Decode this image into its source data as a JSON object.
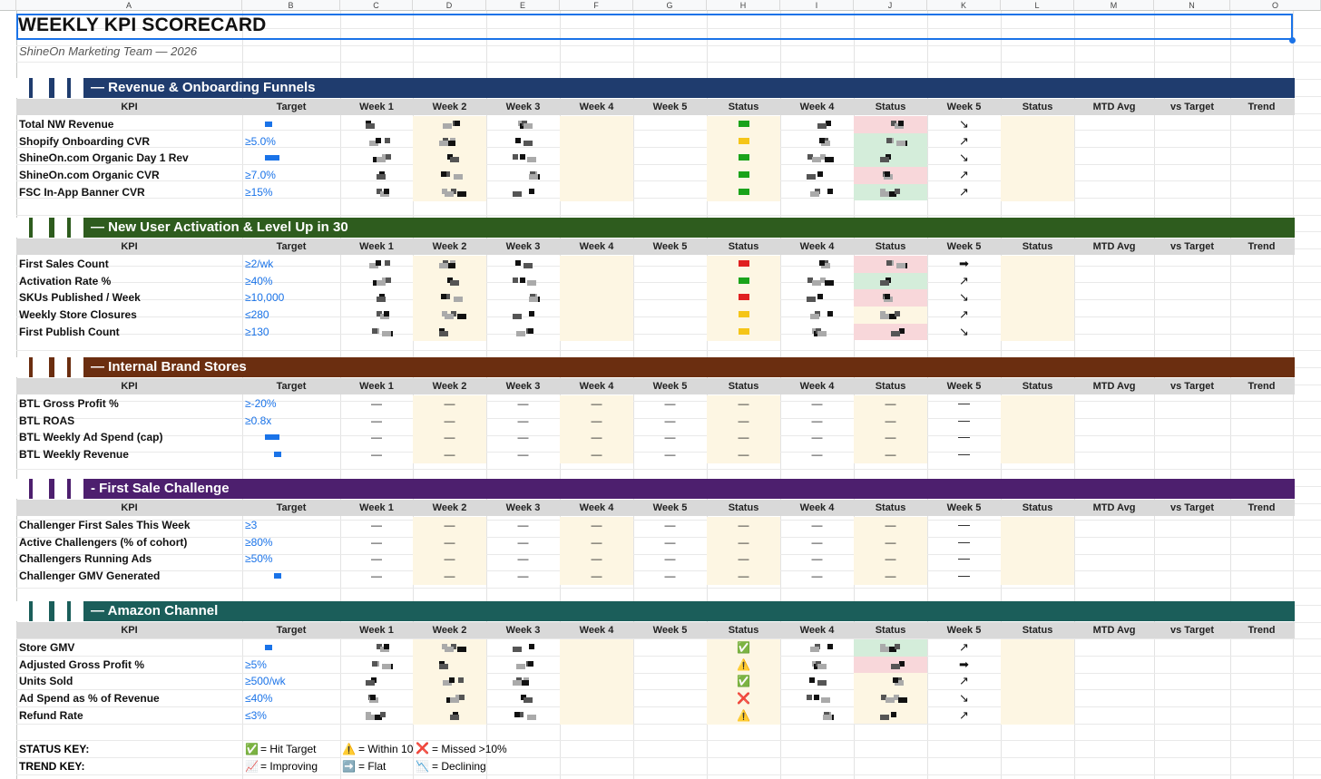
{
  "sheet": {
    "columns": [
      "A",
      "B",
      "C",
      "D",
      "E",
      "F",
      "G",
      "H",
      "I",
      "J",
      "K",
      "L",
      "M",
      "N",
      "O"
    ],
    "title": "WEEKLY KPI SCORECARD",
    "subtitle": "ShineOn Marketing Team — 2026"
  },
  "colors": {
    "revenue_band": "#1f3c6e",
    "activation_band": "#2e5c1e",
    "brand_band": "#6b2e10",
    "challenge_band": "#4d1f6e",
    "amazon_band": "#1b5e5a",
    "header_gray": "#d9d9d9",
    "highlight_cream": "#fdf6e3",
    "status_green": "#d4edda",
    "status_red": "#f8d7da",
    "target_blue": "#1a73e8"
  },
  "table_headers": [
    "KPI",
    "Target",
    "Week 1",
    "Week 2",
    "Week 3",
    "Week 4",
    "Week 5",
    "Status",
    "Week 4",
    "Status",
    "Week 5",
    "Status",
    "MTD Avg",
    "vs Target",
    "Trend"
  ],
  "sections": [
    {
      "title": "— Revenue & Onboarding Funnels",
      "rows": [
        {
          "kpi": "Total NW Revenue",
          "target": "",
          "trend": "↘"
        },
        {
          "kpi": "Shopify Onboarding CVR",
          "target": "≥5.0%",
          "trend": "↗"
        },
        {
          "kpi": "ShineOn.com Organic Day 1 Rev",
          "target": "",
          "trend": "↘"
        },
        {
          "kpi": "ShineOn.com Organic CVR",
          "target": "≥7.0%",
          "trend": "↗"
        },
        {
          "kpi": "FSC In-App Banner CVR",
          "target": "≥15%",
          "trend": "↗"
        }
      ]
    },
    {
      "title": "— New User Activation & Level Up in 30",
      "rows": [
        {
          "kpi": "First Sales Count",
          "target": "≥2/wk",
          "trend": "➡"
        },
        {
          "kpi": "Activation Rate %",
          "target": "≥40%",
          "trend": "↗"
        },
        {
          "kpi": "SKUs Published / Week",
          "target": "≥10,000",
          "trend": "↘"
        },
        {
          "kpi": "Weekly Store Closures",
          "target": "≤280",
          "trend": "↗"
        },
        {
          "kpi": "First Publish Count",
          "target": "≥130",
          "trend": "↘"
        }
      ]
    },
    {
      "title": "— Internal Brand Stores",
      "rows": [
        {
          "kpi": "BTL Gross Profit %",
          "target": "≥-20%",
          "trend": "—"
        },
        {
          "kpi": "BTL ROAS",
          "target": "≥0.8x",
          "trend": "—"
        },
        {
          "kpi": "BTL Weekly Ad Spend (cap)",
          "target": "",
          "trend": "—"
        },
        {
          "kpi": "BTL Weekly Revenue",
          "target": "",
          "trend": "—"
        }
      ]
    },
    {
      "title": "- First Sale Challenge",
      "rows": [
        {
          "kpi": "Challenger First Sales This Week",
          "target": "≥3",
          "trend": "—"
        },
        {
          "kpi": "Active Challengers (% of cohort)",
          "target": "≥80%",
          "trend": "—"
        },
        {
          "kpi": "Challengers Running Ads",
          "target": "≥50%",
          "trend": "—"
        },
        {
          "kpi": "Challenger GMV Generated",
          "target": "",
          "trend": "—"
        }
      ]
    },
    {
      "title": "— Amazon Channel",
      "rows": [
        {
          "kpi": "Store GMV",
          "target": "",
          "trend": "↗",
          "status": "✅"
        },
        {
          "kpi": "Adjusted Gross Profit %",
          "target": "≥5%",
          "trend": "➡",
          "status": "⚠️"
        },
        {
          "kpi": "Units Sold",
          "target": "≥500/wk",
          "trend": "↗",
          "status": "✅"
        },
        {
          "kpi": "Ad Spend as % of Revenue",
          "target": "≤40%",
          "trend": "↘",
          "status": "❌"
        },
        {
          "kpi": "Refund Rate",
          "target": "≤3%",
          "trend": "↗",
          "status": "⚠️"
        }
      ]
    }
  ],
  "dash": "—",
  "keys": {
    "status_label": "STATUS KEY:",
    "trend_label": "TREND KEY:",
    "hit_icon": "✅",
    "hit_text": "= Hit Target",
    "within_icon": "⚠️",
    "within_text": "= Within 10",
    "missed_icon": "❌",
    "missed_text": "= Missed >10%",
    "improving_icon": "📈",
    "improving_text": "= Improving",
    "flat_icon": "➡️",
    "flat_text": "= Flat",
    "declining_icon": "📉",
    "declining_text": "= Declining"
  }
}
